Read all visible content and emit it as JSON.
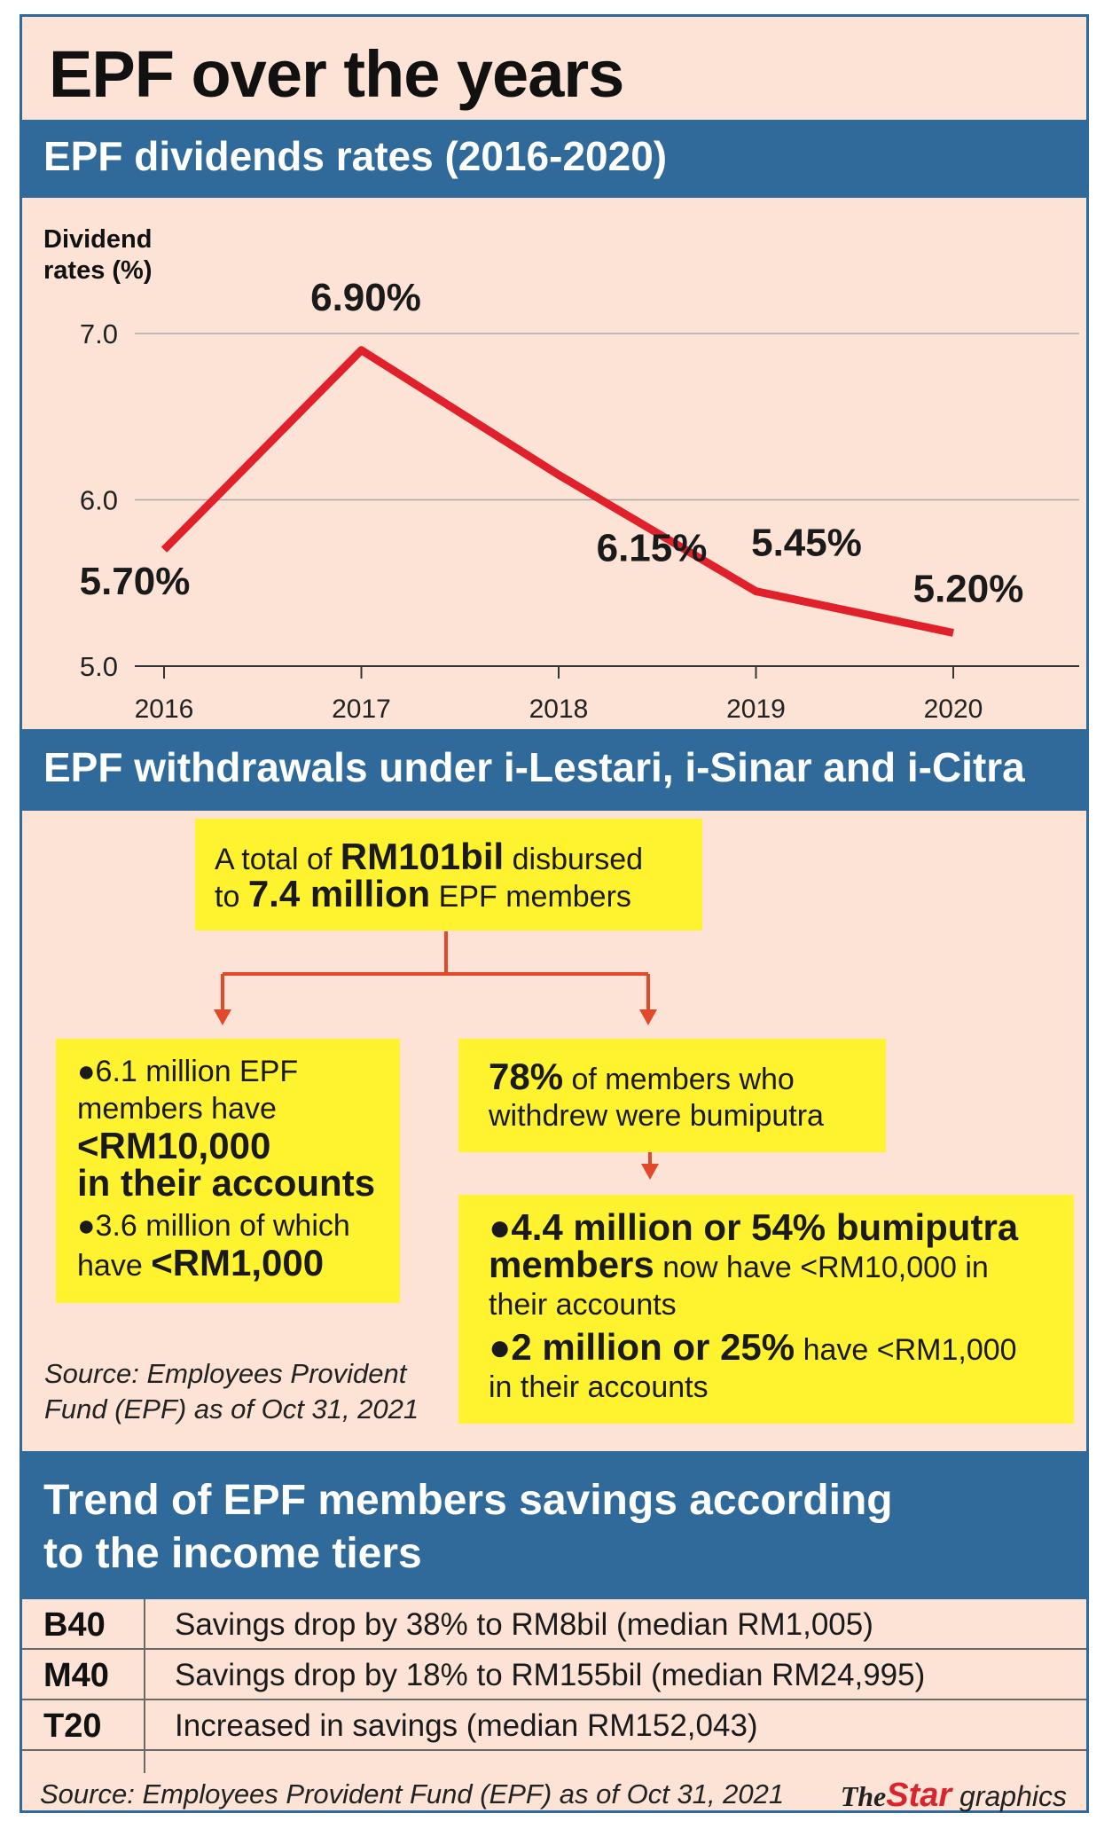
{
  "title": "EPF over the years",
  "sections": {
    "dividends": "EPF dividends rates (2016-2020)",
    "withdrawals": "EPF withdrawals under i-Lestari, i-Sinar and i-Citra",
    "trend_line1": "Trend of EPF members savings according",
    "trend_line2": "to the income tiers"
  },
  "chart_data": {
    "type": "line",
    "ylabel_line1": "Dividend",
    "ylabel_line2": "rates (%)",
    "x": [
      "2016",
      "2017",
      "2018",
      "2019",
      "2020"
    ],
    "series": [
      {
        "values": [
          5.7,
          6.9,
          6.15,
          5.45,
          5.2
        ],
        "color": "#e0202a"
      }
    ],
    "data_labels": [
      "5.70%",
      "6.90%",
      "6.15%",
      "5.45%",
      "5.20%"
    ],
    "y_ticks": [
      5.0,
      6.0,
      7.0
    ],
    "y_tick_labels": [
      "5.0",
      "6.0",
      "7.0"
    ],
    "ylim": [
      5.0,
      7.0
    ],
    "grid": true,
    "legend": "none"
  },
  "withdrawals": {
    "top_box": {
      "l1_pre": "A total of ",
      "l1_bold": "RM101bil",
      "l1_post": " disbursed",
      "l2_pre": "to ",
      "l2_bold": "7.4 million",
      "l2_post": " EPF members"
    },
    "left_box": {
      "b1_line1": "●6.1 million EPF",
      "b1_line2": "members have",
      "b1_bold1": "<RM10,000",
      "b1_bold2": "in their accounts",
      "b2_line1": "●3.6 million of which",
      "b2_line2_pre": "have ",
      "b2_line2_bold": "<RM1,000"
    },
    "mid_box": {
      "bold": "78%",
      "l1_post": " of members who",
      "l2": "withdrew were bumiputra"
    },
    "bottom_box": {
      "b1_bold1": "●4.4 million or 54% bumiputra",
      "b1_bold2": "members",
      "b1_post": " now have <RM10,000 in",
      "b1_line3": "their accounts",
      "b2_bold": "●2 million or 25%",
      "b2_post": " have <RM1,000",
      "b2_line2": "in their accounts"
    },
    "source_line1": "Source: Employees Provident",
    "source_line2": "Fund (EPF) as of Oct 31, 2021"
  },
  "tiers": [
    {
      "name": "B40",
      "desc": "Savings drop by 38% to RM8bil (median RM1,005)"
    },
    {
      "name": "M40",
      "desc": "Savings drop by 18% to RM155bil (median RM24,995)"
    },
    {
      "name": "T20",
      "desc": "Increased in savings (median RM152,043)"
    }
  ],
  "footer": {
    "source": "Source: Employees Provident Fund (EPF) as of Oct 31, 2021",
    "brand_the": "The",
    "brand_star": "Star",
    "brand_graphics": " graphics"
  },
  "colors": {
    "band": "#2f6a9a",
    "background": "#fde3d6",
    "highlight": "#fff22e",
    "line": "#e0202a",
    "arrow": "#e04a2a"
  }
}
